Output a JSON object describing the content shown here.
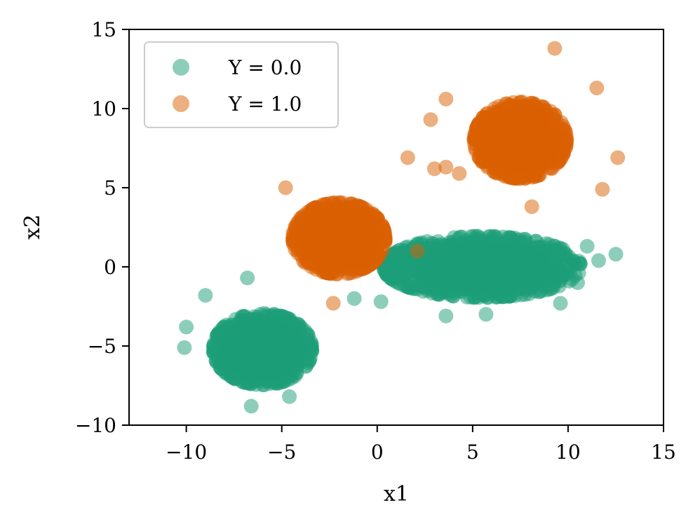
{
  "chart_data": {
    "type": "scatter",
    "title": "",
    "xlabel": "x1",
    "ylabel": "x2",
    "xlim": [
      -13,
      15
    ],
    "ylim": [
      -10,
      15
    ],
    "xticks": [
      -10,
      -5,
      0,
      5,
      10,
      15
    ],
    "yticks": [
      -10,
      -5,
      0,
      5,
      10,
      15
    ],
    "xtick_labels": [
      "−10",
      "−5",
      "0",
      "5",
      "10",
      "15"
    ],
    "ytick_labels": [
      "−10",
      "−5",
      "0",
      "5",
      "10",
      "15"
    ],
    "grid": false,
    "legend_position": "top-left",
    "series": [
      {
        "name": "Y = 0.0",
        "color": "#1b9e77",
        "alpha": 0.5,
        "clusters": [
          {
            "center": [
              -6.0,
              -5.2
            ],
            "spread": [
              1.6,
              1.4
            ],
            "approx_points": 2500
          },
          {
            "center": [
              5.5,
              0.0
            ],
            "spread": [
              3.2,
              1.2
            ],
            "approx_points": 2500
          }
        ],
        "outliers": [
          [
            -9.0,
            -1.8
          ],
          [
            -6.8,
            -0.7
          ],
          [
            -10.0,
            -3.8
          ],
          [
            -10.1,
            -5.1
          ],
          [
            -6.6,
            -8.8
          ],
          [
            -4.6,
            -8.2
          ],
          [
            11.6,
            0.4
          ],
          [
            12.5,
            0.8
          ],
          [
            10.5,
            -1.0
          ],
          [
            9.6,
            -2.3
          ],
          [
            0.2,
            -2.2
          ],
          [
            -1.2,
            -2.0
          ],
          [
            3.6,
            -3.1
          ],
          [
            5.7,
            -3.0
          ],
          [
            11.0,
            1.3
          ]
        ]
      },
      {
        "name": "Y = 1.0",
        "color": "#d95f02",
        "alpha": 0.5,
        "clusters": [
          {
            "center": [
              -2.0,
              1.8
            ],
            "spread": [
              1.5,
              1.4
            ],
            "approx_points": 2500
          },
          {
            "center": [
              7.5,
              8.0
            ],
            "spread": [
              1.5,
              1.5
            ],
            "approx_points": 2500
          }
        ],
        "outliers": [
          [
            9.3,
            13.8
          ],
          [
            1.6,
            6.9
          ],
          [
            2.8,
            9.3
          ],
          [
            12.6,
            6.9
          ],
          [
            11.8,
            4.9
          ],
          [
            -4.8,
            5.0
          ],
          [
            -2.3,
            -2.3
          ],
          [
            2.1,
            1.0
          ],
          [
            3.0,
            6.2
          ],
          [
            3.6,
            6.3
          ],
          [
            4.3,
            5.9
          ],
          [
            3.6,
            10.6
          ],
          [
            11.5,
            11.3
          ],
          [
            8.1,
            3.8
          ]
        ]
      }
    ]
  }
}
